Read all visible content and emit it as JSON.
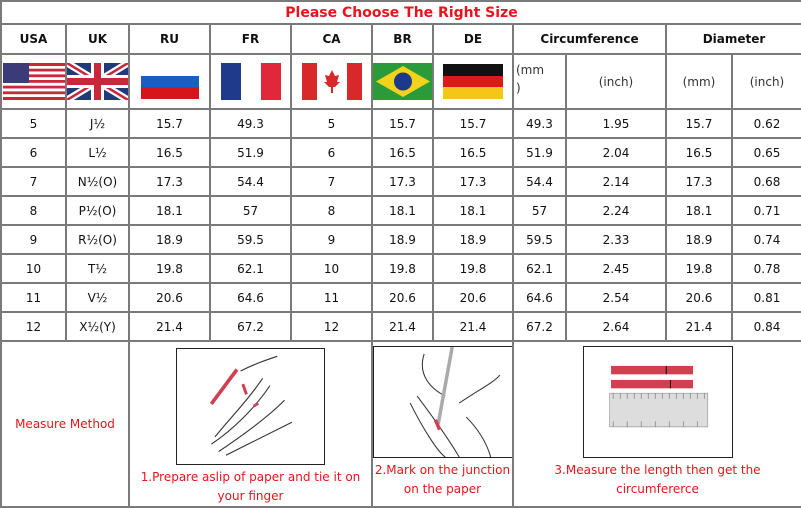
{
  "title": "Please Choose The Right Size",
  "headers": [
    "USA",
    "UK",
    "RU",
    "FR",
    "CA",
    "BR",
    "DE",
    "Circumference",
    "Diameter"
  ],
  "flags": [
    "usa-flag",
    "uk-flag",
    "russia-flag",
    "france-flag",
    "canada-flag",
    "brazil-flag",
    "germany-flag"
  ],
  "units": {
    "circ_mm": "(mm\n)",
    "circ_inch": "(inch)",
    "dia_mm": "(mm)",
    "dia_inch": "(inch)"
  },
  "rows": [
    [
      "5",
      "J½",
      "15.7",
      "49.3",
      "5",
      "15.7",
      "15.7",
      "49.3",
      "1.95",
      "15.7",
      "0.62"
    ],
    [
      "6",
      "L½",
      "16.5",
      "51.9",
      "6",
      "16.5",
      "16.5",
      "51.9",
      "2.04",
      "16.5",
      "0.65"
    ],
    [
      "7",
      "N½(O)",
      "17.3",
      "54.4",
      "7",
      "17.3",
      "17.3",
      "54.4",
      "2.14",
      "17.3",
      "0.68"
    ],
    [
      "8",
      "P½(O)",
      "18.1",
      "57",
      "8",
      "18.1",
      "18.1",
      "57",
      "2.24",
      "18.1",
      "0.71"
    ],
    [
      "9",
      "R½(O)",
      "18.9",
      "59.5",
      "9",
      "18.9",
      "18.9",
      "59.5",
      "2.33",
      "18.9",
      "0.74"
    ],
    [
      "10",
      "T½",
      "19.8",
      "62.1",
      "10",
      "19.8",
      "19.8",
      "62.1",
      "2.45",
      "19.8",
      "0.78"
    ],
    [
      "11",
      "V½",
      "20.6",
      "64.6",
      "11",
      "20.6",
      "20.6",
      "64.6",
      "2.54",
      "20.6",
      "0.81"
    ],
    [
      "12",
      "X½(Y)",
      "21.4",
      "67.2",
      "12",
      "21.4",
      "21.4",
      "67.2",
      "2.64",
      "21.4",
      "0.84"
    ]
  ],
  "measure": {
    "label": "Measure Method",
    "steps": [
      "1.Prepare aslip of paper and tie it on your finger",
      "2.Mark on the junction on the paper",
      "3.Measure the length then get the circumfererce"
    ]
  },
  "colors": {
    "title": "#e8141b",
    "border": "#7a7a7a",
    "accent_red": "#d04050"
  }
}
